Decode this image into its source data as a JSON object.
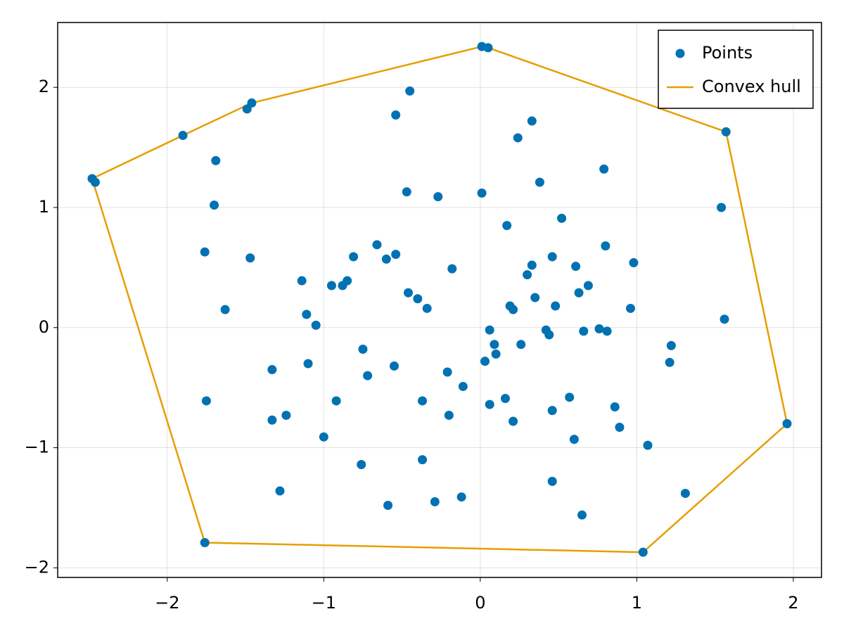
{
  "chart_data": {
    "type": "scatter",
    "xlim": [
      -2.7,
      2.18
    ],
    "ylim": [
      -2.08,
      2.54
    ],
    "xticks": [
      {
        "value": -2,
        "label": "−2"
      },
      {
        "value": -1,
        "label": "−1"
      },
      0,
      1,
      2
    ],
    "yticks": [
      {
        "value": -2,
        "label": "−2"
      },
      {
        "value": -1,
        "label": "−1"
      },
      0,
      1,
      2
    ],
    "grid": true,
    "legend": "top-right",
    "series": [
      {
        "name": "Points",
        "type": "scatter",
        "color": "#0072b2",
        "x": [
          0.01,
          0.05,
          -0.45,
          -1.46,
          -1.49,
          -0.54,
          -1.9,
          0.33,
          0.24,
          1.57,
          -1.69,
          -2.48,
          -2.46,
          0.79,
          0.38,
          -0.47,
          0.01,
          -0.27,
          -1.7,
          1.54,
          0.52,
          0.17,
          -0.66,
          -1.76,
          -1.47,
          -0.54,
          -0.81,
          -0.6,
          0.8,
          0.46,
          0.61,
          0.33,
          0.3,
          0.98,
          -0.18,
          -1.14,
          -0.95,
          -0.85,
          -0.88,
          -0.46,
          0.63,
          0.69,
          -0.4,
          0.35,
          -0.34,
          -1.63,
          0.48,
          0.19,
          0.21,
          0.96,
          -1.11,
          -1.05,
          1.56,
          0.06,
          0.42,
          0.44,
          0.66,
          0.76,
          0.81,
          0.09,
          0.26,
          -0.75,
          0.1,
          1.22,
          -1.33,
          -1.1,
          1.21,
          -0.55,
          0.03,
          -0.21,
          -0.72,
          -0.11,
          -1.75,
          -0.92,
          -0.37,
          0.16,
          0.06,
          0.57,
          0.86,
          0.46,
          -1.33,
          -1.24,
          -0.2,
          0.21,
          0.89,
          1.96,
          -1.0,
          0.6,
          1.07,
          -0.37,
          -0.76,
          0.46,
          -1.28,
          1.31,
          -0.12,
          -0.29,
          -0.59,
          0.65,
          -1.76,
          1.04
        ],
        "values": [
          2.34,
          2.33,
          1.97,
          1.87,
          1.82,
          1.77,
          1.6,
          1.72,
          1.58,
          1.63,
          1.39,
          1.24,
          1.21,
          1.32,
          1.21,
          1.13,
          1.12,
          1.09,
          1.02,
          1.0,
          0.91,
          0.85,
          0.69,
          0.63,
          0.58,
          0.61,
          0.59,
          0.57,
          0.68,
          0.59,
          0.51,
          0.52,
          0.44,
          0.54,
          0.49,
          0.39,
          0.35,
          0.39,
          0.35,
          0.29,
          0.29,
          0.35,
          0.24,
          0.25,
          0.16,
          0.15,
          0.18,
          0.18,
          0.15,
          0.16,
          0.11,
          0.02,
          0.07,
          -0.02,
          -0.02,
          -0.06,
          -0.03,
          -0.01,
          -0.03,
          -0.14,
          -0.14,
          -0.18,
          -0.22,
          -0.15,
          -0.35,
          -0.3,
          -0.29,
          -0.32,
          -0.28,
          -0.37,
          -0.4,
          -0.49,
          -0.61,
          -0.61,
          -0.61,
          -0.59,
          -0.64,
          -0.58,
          -0.66,
          -0.69,
          -0.77,
          -0.73,
          -0.73,
          -0.78,
          -0.83,
          -0.8,
          -0.91,
          -0.93,
          -0.98,
          -1.1,
          -1.14,
          -1.28,
          -1.36,
          -1.38,
          -1.41,
          -1.45,
          -1.48,
          -1.56,
          -1.79,
          -1.87
        ]
      },
      {
        "name": "Convex hull",
        "type": "line",
        "color": "#e69f00",
        "x": [
          -2.48,
          -1.9,
          -1.46,
          0.01,
          0.05,
          1.57,
          1.96,
          1.04,
          -1.76,
          -2.48
        ],
        "values": [
          1.24,
          1.6,
          1.87,
          2.34,
          2.33,
          1.63,
          -0.8,
          -1.87,
          -1.79,
          1.24
        ]
      }
    ]
  }
}
